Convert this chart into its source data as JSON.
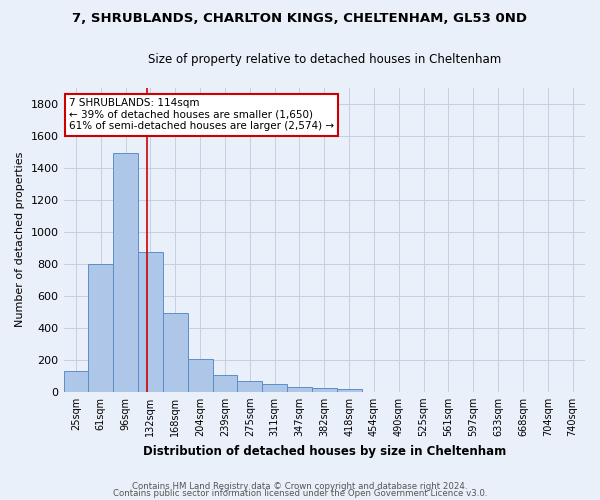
{
  "title_line1": "7, SHRUBLANDS, CHARLTON KINGS, CHELTENHAM, GL53 0ND",
  "title_line2": "Size of property relative to detached houses in Cheltenham",
  "xlabel": "Distribution of detached houses by size in Cheltenham",
  "ylabel": "Number of detached properties",
  "footer_line1": "Contains HM Land Registry data © Crown copyright and database right 2024.",
  "footer_line2": "Contains public sector information licensed under the Open Government Licence v3.0.",
  "bar_labels": [
    "25sqm",
    "61sqm",
    "96sqm",
    "132sqm",
    "168sqm",
    "204sqm",
    "239sqm",
    "275sqm",
    "311sqm",
    "347sqm",
    "382sqm",
    "418sqm",
    "454sqm",
    "490sqm",
    "525sqm",
    "561sqm",
    "597sqm",
    "633sqm",
    "668sqm",
    "704sqm",
    "740sqm"
  ],
  "bar_values": [
    130,
    800,
    1490,
    875,
    495,
    205,
    105,
    65,
    47,
    33,
    25,
    17,
    0,
    0,
    0,
    0,
    0,
    0,
    0,
    0,
    0
  ],
  "bar_color": "#aec6e8",
  "bar_edge_color": "#5b8fc9",
  "annotation_line1": "7 SHRUBLANDS: 114sqm",
  "annotation_line2": "← 39% of detached houses are smaller (1,650)",
  "annotation_line3": "61% of semi-detached houses are larger (2,574) →",
  "vline_x_index": 2.88,
  "vline_color": "#cc0000",
  "bg_color": "#eaf0f9",
  "plot_bg_color": "#eaf0f9",
  "grid_color": "#c5cfe0",
  "ylim": [
    0,
    1900
  ],
  "ytick_interval": 200
}
